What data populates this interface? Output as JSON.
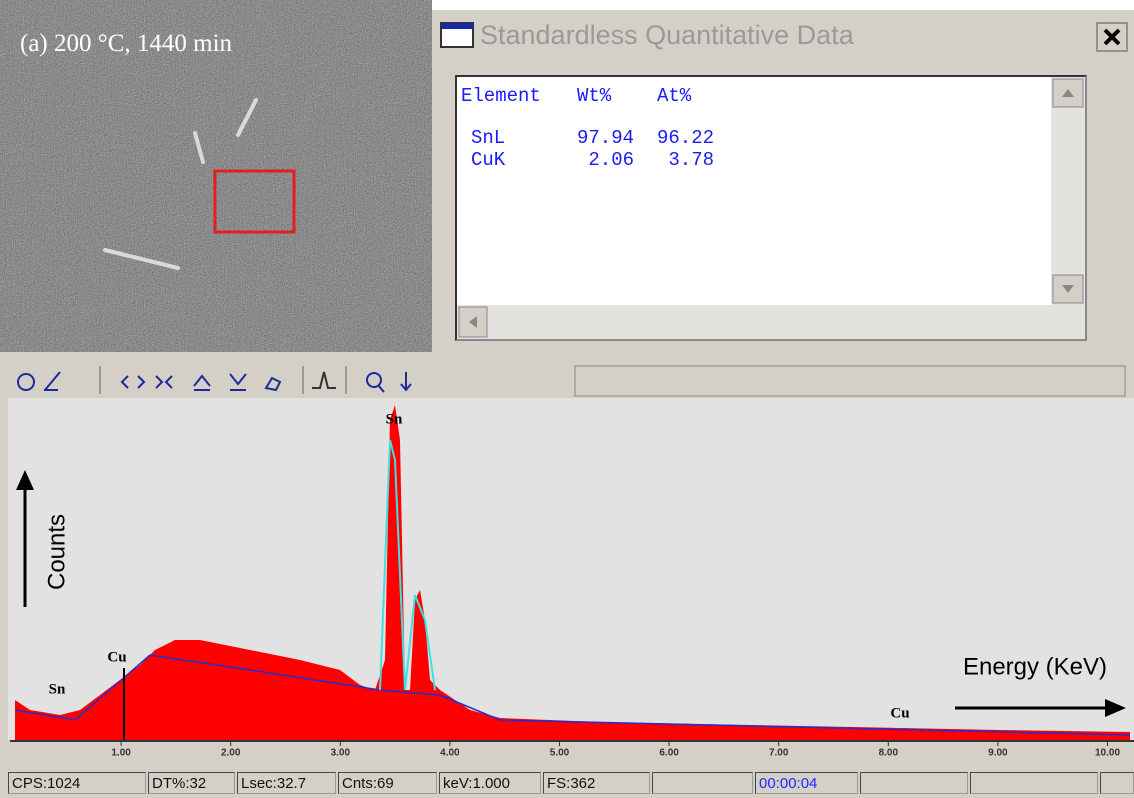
{
  "image": {
    "caption": "(a) 200 °C, 1440 min"
  },
  "quant_window": {
    "title": "Standardless Quantitative Data",
    "headers": [
      "Element",
      "Wt%",
      "At%"
    ],
    "rows": [
      [
        "SnL",
        97.94,
        96.22
      ],
      [
        "CuK",
        2.06,
        3.78
      ]
    ]
  },
  "spectrum": {
    "y_label": "Counts",
    "x_label": "Energy (KeV)",
    "peak_labels": [
      "Sn",
      "Cu",
      "Sn",
      "Cu"
    ],
    "xticks": [
      "1.00",
      "2.00",
      "3.00",
      "4.00",
      "5.00",
      "6.00",
      "7.00",
      "8.00",
      "9.00",
      "10.00"
    ]
  },
  "status_bar": [
    "CPS:1024",
    "DT%:32",
    "Lsec:32.7",
    "Cnts:69",
    "keV:1.000",
    "FS:362",
    "00:00:04"
  ]
}
